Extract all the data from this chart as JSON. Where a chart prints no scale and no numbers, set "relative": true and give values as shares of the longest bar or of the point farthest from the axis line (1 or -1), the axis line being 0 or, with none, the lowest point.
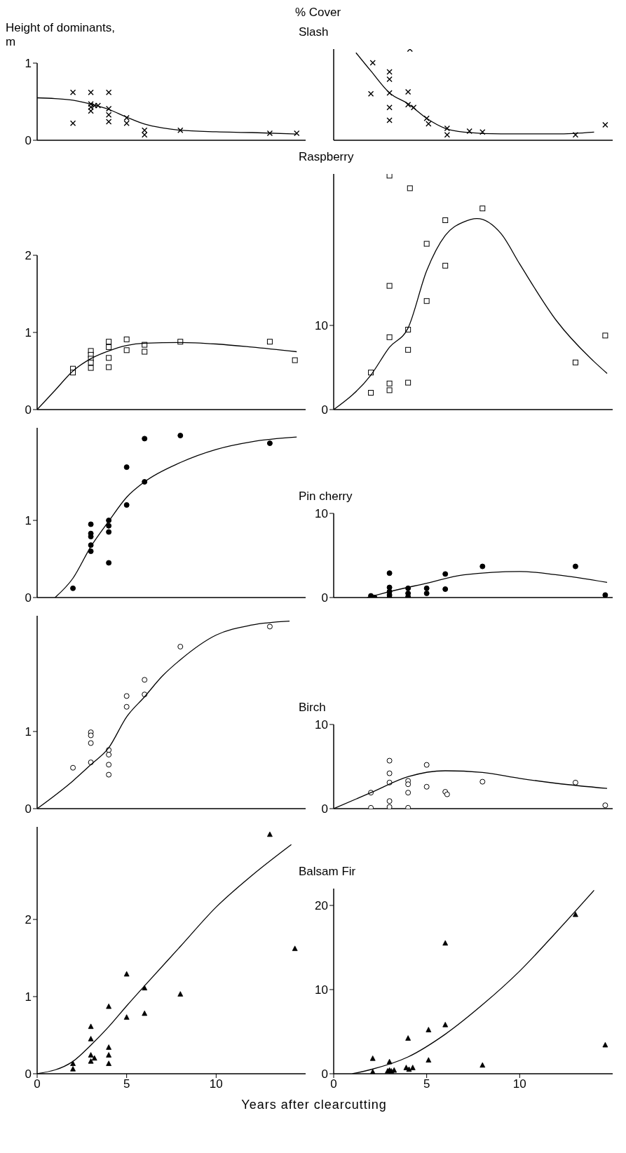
{
  "chart_data": [
    {
      "type": "scatter",
      "ylabel": "Height of dominants, m",
      "xlim": [
        0,
        15
      ],
      "xticks": [
        0,
        5,
        10
      ],
      "ylim": [
        0,
        1
      ],
      "yticks": [
        0,
        1
      ],
      "tick_labels": "y",
      "series": [
        {
          "type": "scatter",
          "marker": "cross",
          "color": "#000000",
          "x": [
            2,
            2,
            3,
            3,
            3,
            3,
            3.2,
            3.4,
            4,
            4,
            4,
            4,
            5,
            5,
            6,
            6,
            8,
            13,
            14.5
          ],
          "values": [
            0.62,
            0.22,
            0.62,
            0.47,
            0.43,
            0.38,
            0.45,
            0.45,
            0.62,
            0.41,
            0.33,
            0.24,
            0.29,
            0.22,
            0.13,
            0.07,
            0.13,
            0.09,
            0.09
          ]
        },
        {
          "type": "line",
          "marker": "none",
          "line_style": "solid",
          "color": "#000000",
          "x": [
            0,
            1,
            2,
            3,
            4,
            5,
            6,
            7,
            8,
            10,
            12,
            14.5
          ],
          "values": [
            0.55,
            0.54,
            0.52,
            0.47,
            0.4,
            0.3,
            0.21,
            0.16,
            0.13,
            0.11,
            0.1,
            0.08
          ]
        }
      ]
    },
    {
      "type": "scatter",
      "title": "Slash",
      "ylabel": "% Cover",
      "relative": true,
      "xlim": [
        0,
        15
      ],
      "xticks": [
        0,
        5,
        10
      ],
      "tick_labels": false,
      "series": [
        {
          "type": "scatter",
          "marker": "cross",
          "color": "#000000",
          "x": [
            2.1,
            2,
            3,
            3,
            3,
            3,
            3,
            4.1,
            4,
            4,
            4.3,
            5,
            5.1,
            6.1,
            6.1,
            7.3,
            8,
            13,
            14.6
          ],
          "values": [
            0.85,
            0.51,
            0.75,
            0.67,
            0.52,
            0.36,
            0.22,
            1,
            0.53,
            0.39,
            0.36,
            0.24,
            0.18,
            0.13,
            0.06,
            0.1,
            0.09,
            0.06,
            0.17
          ]
        },
        {
          "type": "line",
          "marker": "none",
          "line_style": "solid",
          "color": "#000000",
          "x": [
            1.2,
            2,
            3,
            4,
            5,
            6,
            7,
            9,
            12,
            14
          ],
          "values": [
            0.96,
            0.76,
            0.52,
            0.4,
            0.24,
            0.13,
            0.09,
            0.07,
            0.07,
            0.09
          ]
        }
      ]
    },
    {
      "type": "scatter",
      "xlim": [
        0,
        15
      ],
      "xticks": [
        0,
        5,
        10
      ],
      "ylim": [
        0,
        2
      ],
      "yticks": [
        0,
        1,
        2
      ],
      "tick_labels": "y",
      "series": [
        {
          "type": "scatter",
          "marker": "square",
          "color": "#ffffff",
          "x": [
            2,
            2,
            3,
            3,
            3,
            3,
            3,
            4,
            4,
            4,
            4,
            5,
            5,
            6,
            6,
            8,
            13,
            14.4
          ],
          "values": [
            0.53,
            0.48,
            0.76,
            0.71,
            0.66,
            0.61,
            0.54,
            0.88,
            0.81,
            0.67,
            0.55,
            0.91,
            0.77,
            0.84,
            0.75,
            0.88,
            0.88,
            0.64
          ]
        },
        {
          "type": "line",
          "marker": "none",
          "line_style": "solid",
          "color": "#000000",
          "x": [
            0,
            1,
            2,
            3,
            4,
            5,
            6,
            8,
            10,
            12,
            14.5
          ],
          "values": [
            0,
            0.25,
            0.5,
            0.66,
            0.76,
            0.83,
            0.86,
            0.87,
            0.85,
            0.81,
            0.75
          ]
        }
      ]
    },
    {
      "type": "scatter",
      "title": "Raspberry",
      "xlim": [
        0,
        15
      ],
      "xticks": [
        0,
        5,
        10
      ],
      "ylim": [
        0,
        28
      ],
      "yticks": [
        0,
        10
      ],
      "tick_labels": "y",
      "series": [
        {
          "type": "scatter",
          "marker": "square",
          "color": "#ffffff",
          "x": [
            2,
            2,
            3,
            3,
            3,
            3,
            4,
            4,
            4,
            5,
            5,
            6,
            6,
            8,
            13,
            14.6,
            3,
            4.1
          ],
          "values": [
            4.4,
            2,
            14.7,
            8.6,
            3.1,
            2.3,
            9.5,
            7.1,
            3.2,
            19.7,
            12.9,
            22.5,
            17.1,
            23.9,
            5.6,
            8.8,
            27.8,
            26.3
          ]
        },
        {
          "type": "line",
          "marker": "none",
          "line_style": "solid",
          "color": "#000000",
          "x": [
            0,
            2,
            3,
            4,
            5,
            6,
            7,
            7.7,
            9,
            10,
            12,
            14,
            14.7
          ],
          "values": [
            0,
            4.1,
            7.4,
            9.7,
            16.5,
            20.7,
            22.3,
            22.7,
            20.9,
            17.3,
            10.5,
            5.7,
            4.3
          ]
        }
      ]
    },
    {
      "type": "scatter",
      "xlim": [
        0,
        15
      ],
      "xticks": [
        0,
        5,
        10
      ],
      "ylim": [
        0,
        2.2
      ],
      "yticks": [
        0,
        1
      ],
      "tick_labels": "y",
      "series": [
        {
          "type": "scatter",
          "marker": "circle",
          "color": "#000000",
          "x": [
            2,
            3,
            3,
            3,
            3,
            3,
            4,
            4,
            4,
            4,
            5,
            5,
            6,
            6,
            8,
            13
          ],
          "values": [
            0.12,
            0.95,
            0.83,
            0.79,
            0.68,
            0.6,
            1,
            0.93,
            0.85,
            0.45,
            1.2,
            1.69,
            1.5,
            2.06,
            2.1,
            2
          ]
        },
        {
          "type": "line",
          "marker": "none",
          "line_style": "solid",
          "color": "#000000",
          "x": [
            1,
            2,
            3,
            4,
            5,
            6,
            8,
            10,
            12,
            14.5
          ],
          "values": [
            0,
            0.25,
            0.66,
            0.99,
            1.3,
            1.5,
            1.75,
            1.92,
            2.02,
            2.08
          ]
        }
      ]
    },
    {
      "type": "scatter",
      "title": "Pin cherry",
      "xlim": [
        0,
        15
      ],
      "xticks": [
        0,
        5,
        10
      ],
      "ylim": [
        0,
        10
      ],
      "yticks": [
        0,
        10
      ],
      "tick_labels": "y",
      "series": [
        {
          "type": "scatter",
          "marker": "circle",
          "color": "#000000",
          "x": [
            2,
            2.2,
            3,
            3,
            3,
            3,
            3,
            4,
            4,
            4,
            5,
            5,
            6,
            6,
            8,
            13,
            14.6
          ],
          "values": [
            0.2,
            0,
            2.9,
            1.2,
            0.7,
            0.3,
            0,
            1.1,
            0.5,
            0.1,
            1.1,
            0.5,
            2.8,
            1,
            3.7,
            3.7,
            0.3
          ]
        },
        {
          "type": "line",
          "marker": "none",
          "line_style": "solid",
          "color": "#000000",
          "x": [
            1.8,
            3,
            5,
            7,
            10,
            12,
            14.7
          ],
          "values": [
            0,
            0.7,
            1.7,
            2.7,
            3.1,
            2.7,
            1.8
          ]
        }
      ]
    },
    {
      "type": "scatter",
      "xlim": [
        0,
        15
      ],
      "xticks": [
        0,
        5,
        10
      ],
      "ylim": [
        0,
        2.5
      ],
      "yticks": [
        0,
        1
      ],
      "tick_labels": "y",
      "series": [
        {
          "type": "scatter",
          "marker": "circle",
          "color": "#ffffff",
          "x": [
            2,
            3,
            3,
            3,
            3,
            4,
            4,
            4,
            4,
            5,
            5,
            6,
            6,
            8,
            13
          ],
          "values": [
            0.53,
            0.99,
            0.95,
            0.85,
            0.6,
            0.76,
            0.7,
            0.57,
            0.44,
            1.46,
            1.32,
            1.48,
            1.67,
            2.1,
            2.36
          ]
        },
        {
          "type": "line",
          "marker": "none",
          "line_style": "solid",
          "color": "#000000",
          "x": [
            0,
            2,
            3,
            4,
            5,
            6,
            7,
            8,
            10,
            12,
            14.1
          ],
          "values": [
            0,
            0.36,
            0.57,
            0.79,
            1.19,
            1.45,
            1.72,
            1.93,
            2.25,
            2.38,
            2.43
          ]
        }
      ]
    },
    {
      "type": "scatter",
      "title": "Birch",
      "xlim": [
        0,
        15
      ],
      "xticks": [
        0,
        5,
        10
      ],
      "ylim": [
        0,
        10
      ],
      "yticks": [
        0,
        10
      ],
      "tick_labels": "y",
      "series": [
        {
          "type": "scatter",
          "marker": "circle",
          "color": "#ffffff",
          "x": [
            2,
            2,
            3,
            3,
            3,
            3,
            3,
            4,
            4,
            4,
            4,
            5,
            5,
            6,
            6.1,
            8,
            13,
            14.6
          ],
          "values": [
            1.9,
            0.1,
            5.7,
            4.2,
            3.1,
            0.9,
            0.2,
            3.3,
            2.9,
            1.9,
            0.1,
            5.2,
            2.6,
            2,
            1.7,
            3.2,
            3.1,
            0.4
          ]
        },
        {
          "type": "line",
          "marker": "none",
          "line_style": "solid",
          "color": "#000000",
          "x": [
            0,
            2,
            4,
            6,
            8,
            10,
            12,
            14.7
          ],
          "values": [
            0,
            1.9,
            3.8,
            4.5,
            4.3,
            3.6,
            3,
            2.4
          ]
        }
      ]
    },
    {
      "type": "scatter",
      "xlabel": "Years after clearcutting",
      "xlim": [
        0,
        15
      ],
      "xticks": [
        0,
        5,
        10
      ],
      "ylim": [
        0,
        3.2
      ],
      "yticks": [
        0,
        1,
        2
      ],
      "series": [
        {
          "type": "scatter",
          "marker": "triangle",
          "color": "#000000",
          "x": [
            2,
            2,
            3,
            3,
            3,
            3,
            3.2,
            4,
            4,
            4,
            4,
            5,
            5,
            6,
            6,
            8,
            13,
            14.4
          ],
          "values": [
            0.13,
            0.06,
            0.61,
            0.45,
            0.24,
            0.16,
            0.2,
            0.87,
            0.34,
            0.24,
            0.13,
            1.29,
            0.73,
            1.11,
            0.78,
            1.03,
            3.1,
            1.62
          ]
        },
        {
          "type": "line",
          "marker": "none",
          "line_style": "solid",
          "color": "#000000",
          "x": [
            0,
            2,
            3,
            4,
            5,
            6,
            8,
            10,
            12,
            14.2
          ],
          "values": [
            0,
            0.16,
            0.37,
            0.61,
            0.88,
            1.14,
            1.65,
            2.16,
            2.57,
            2.97
          ]
        }
      ]
    },
    {
      "type": "scatter",
      "title": "Balsam Fir",
      "xlim": [
        0,
        15
      ],
      "xticks": [
        0,
        5,
        10
      ],
      "ylim": [
        0,
        22
      ],
      "yticks": [
        0,
        10,
        20
      ],
      "series": [
        {
          "type": "scatter",
          "marker": "triangle",
          "color": "#000000",
          "x": [
            2.1,
            2.1,
            3,
            2.9,
            3,
            3.1,
            3.25,
            4,
            3.9,
            4.05,
            4.25,
            5.1,
            5.1,
            6,
            6,
            8,
            13,
            14.6
          ],
          "values": [
            1.8,
            0.2,
            1.4,
            0.3,
            0.4,
            0.3,
            0.4,
            4.2,
            0.7,
            0.5,
            0.7,
            5.2,
            1.6,
            15.5,
            5.8,
            1,
            18.9,
            3.4
          ]
        },
        {
          "type": "line",
          "marker": "none",
          "line_style": "solid",
          "color": "#000000",
          "x": [
            1,
            2,
            4,
            6,
            8,
            10,
            12,
            14
          ],
          "values": [
            0,
            0.5,
            2,
            4.7,
            8.2,
            12.2,
            16.9,
            21.8
          ]
        }
      ]
    }
  ]
}
